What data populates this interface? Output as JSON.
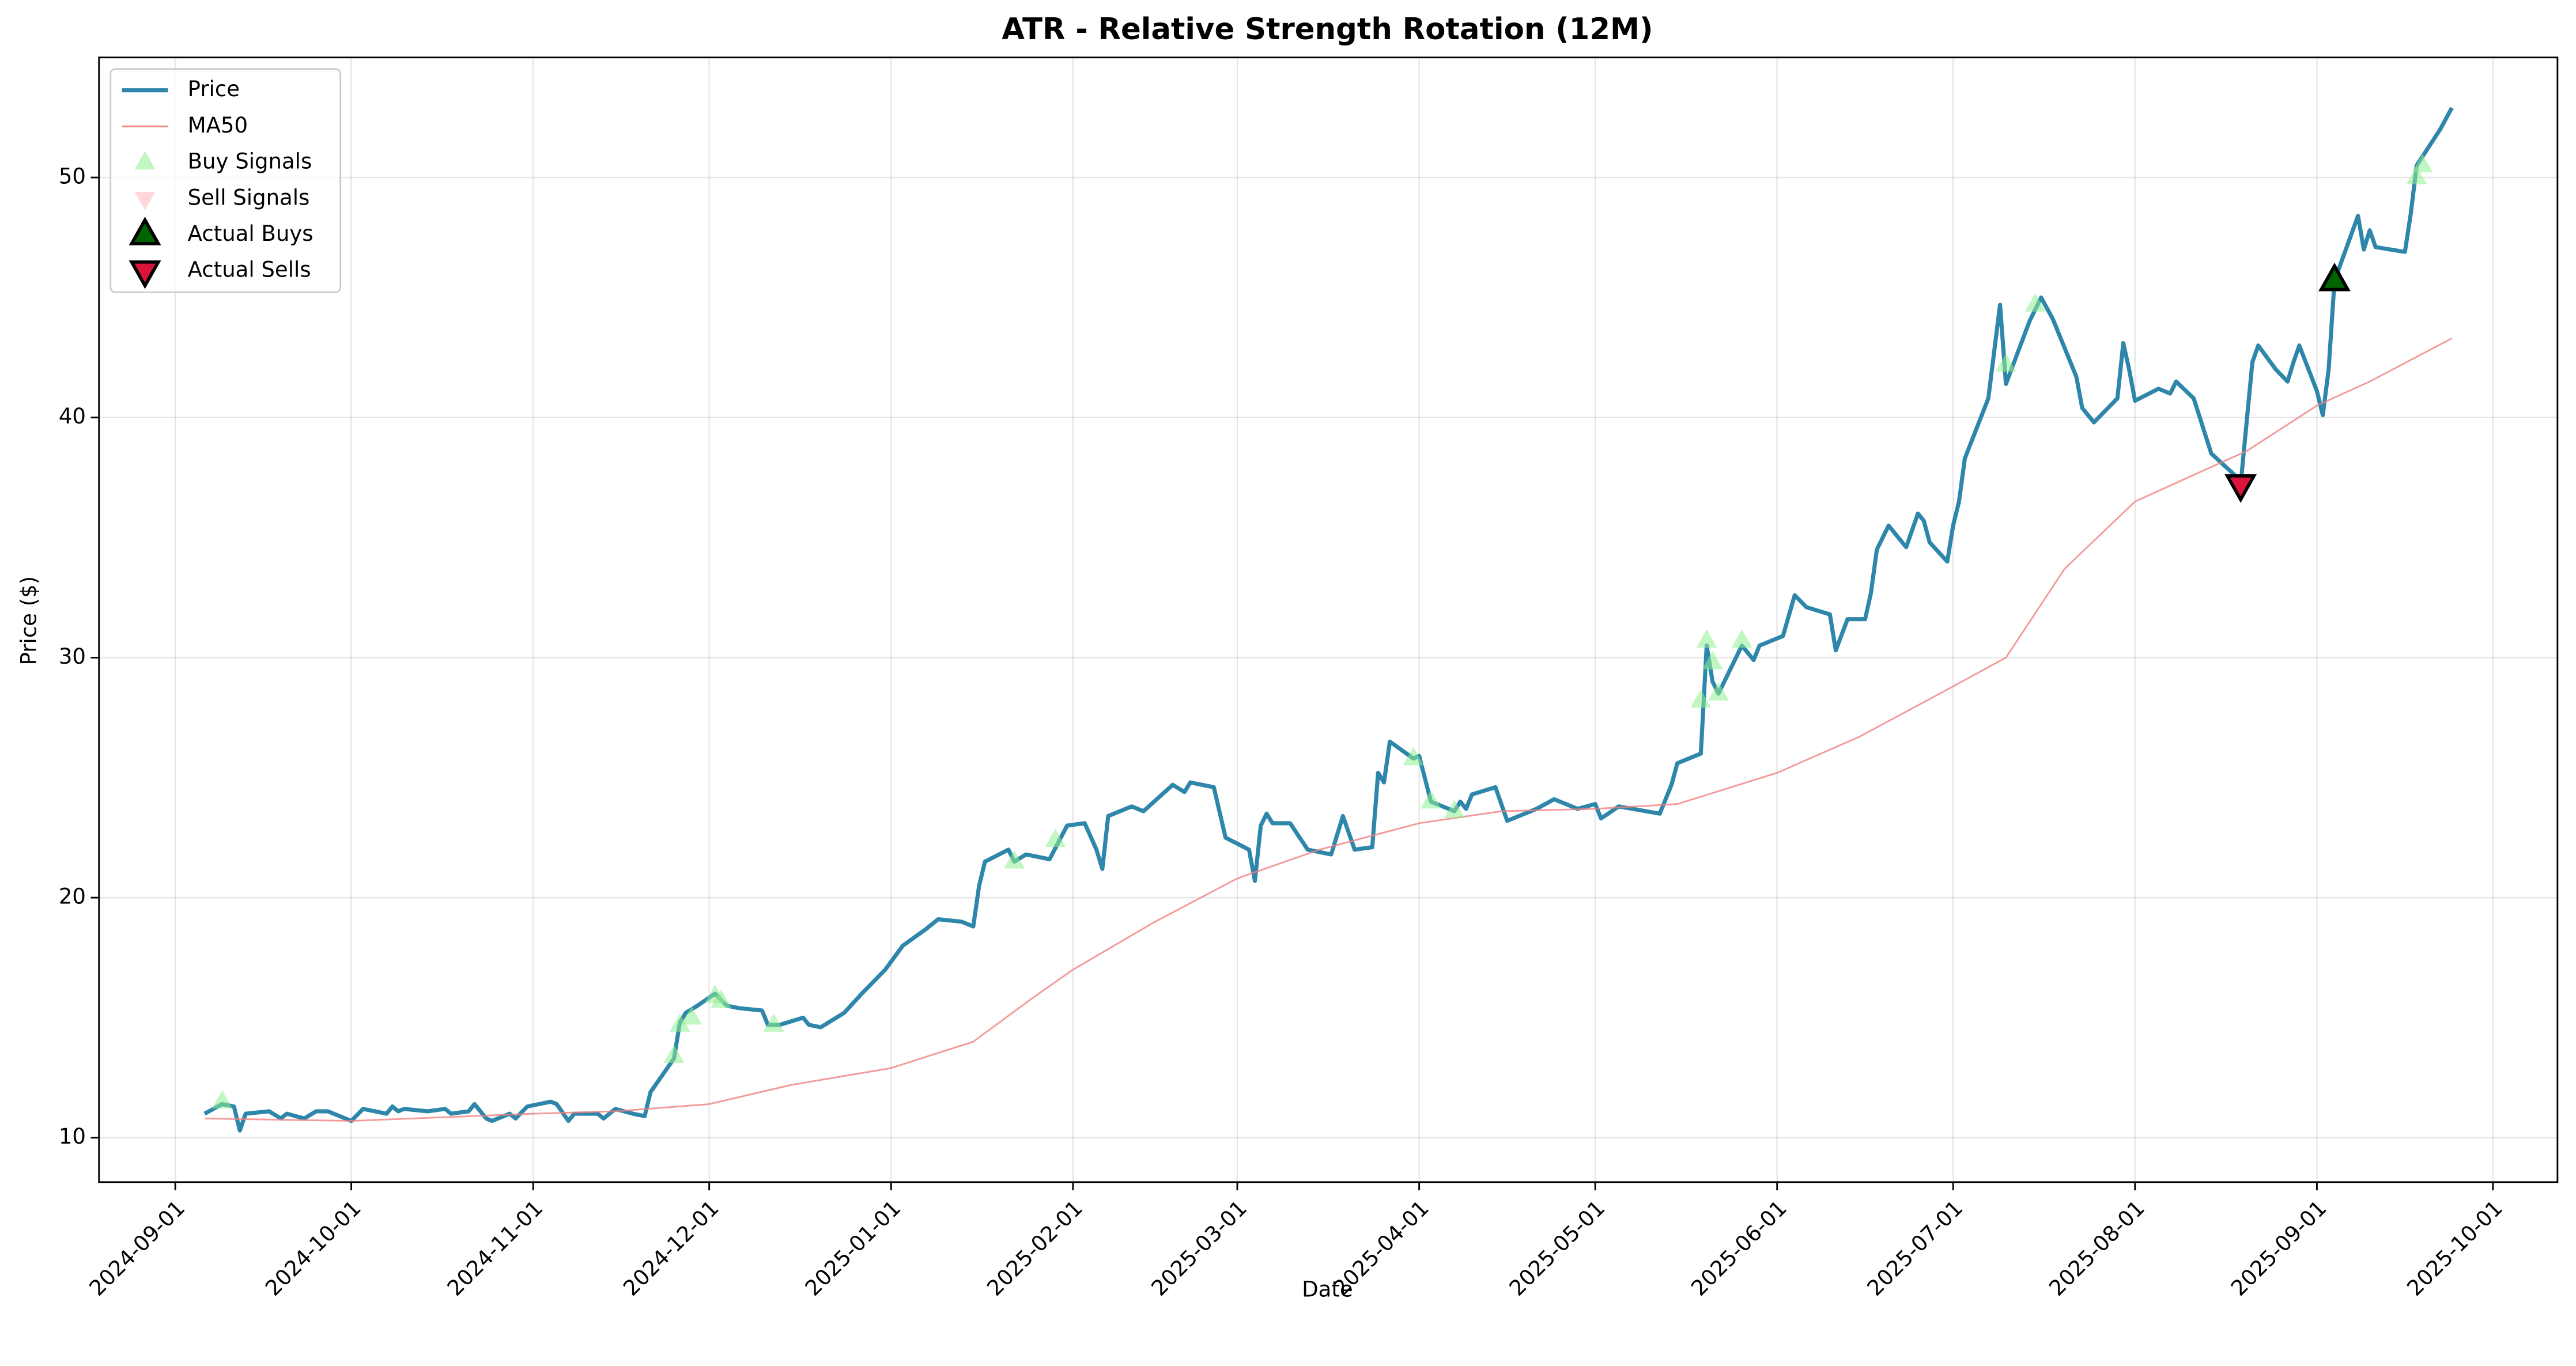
{
  "chart_data": {
    "type": "line",
    "title": "ATR - Relative Strength Rotation (12M)",
    "xlabel": "Date",
    "ylabel": "Price ($)",
    "xlim": [
      "2024-08-19",
      "2025-10-12"
    ],
    "xticks": [
      "2024-09-01",
      "2024-10-01",
      "2024-11-01",
      "2024-12-01",
      "2025-01-01",
      "2025-02-01",
      "2025-03-01",
      "2025-04-01",
      "2025-05-01",
      "2025-06-01",
      "2025-07-01",
      "2025-08-01",
      "2025-09-01",
      "2025-10-01"
    ],
    "ylim": [
      8.15,
      55
    ],
    "yticks": [
      10,
      20,
      30,
      40,
      50
    ],
    "grid": true,
    "legend": "upper left",
    "series": [
      {
        "name": "Price",
        "kind": "line",
        "color": "#2e86ab",
        "x": [
          "2024-09-06",
          "2024-09-09",
          "2024-09-11",
          "2024-09-12",
          "2024-09-13",
          "2024-09-17",
          "2024-09-19",
          "2024-09-20",
          "2024-09-23",
          "2024-09-25",
          "2024-09-27",
          "2024-10-01",
          "2024-10-03",
          "2024-10-07",
          "2024-10-08",
          "2024-10-09",
          "2024-10-10",
          "2024-10-14",
          "2024-10-17",
          "2024-10-18",
          "2024-10-21",
          "2024-10-22",
          "2024-10-24",
          "2024-10-25",
          "2024-10-28",
          "2024-10-29",
          "2024-10-31",
          "2024-11-04",
          "2024-11-05",
          "2024-11-07",
          "2024-11-08",
          "2024-11-12",
          "2024-11-13",
          "2024-11-15",
          "2024-11-18",
          "2024-11-20",
          "2024-11-21",
          "2024-11-25",
          "2024-11-26",
          "2024-11-27",
          "2024-11-29",
          "2024-12-02",
          "2024-12-04",
          "2024-12-06",
          "2024-12-10",
          "2024-12-11",
          "2024-12-13",
          "2024-12-17",
          "2024-12-18",
          "2024-12-20",
          "2024-12-24",
          "2024-12-27",
          "2024-12-31",
          "2025-01-03",
          "2025-01-07",
          "2025-01-09",
          "2025-01-13",
          "2025-01-15",
          "2025-01-16",
          "2025-01-17",
          "2025-01-21",
          "2025-01-22",
          "2025-01-24",
          "2025-01-28",
          "2025-01-31",
          "2025-02-03",
          "2025-02-05",
          "2025-02-06",
          "2025-02-07",
          "2025-02-11",
          "2025-02-13",
          "2025-02-18",
          "2025-02-20",
          "2025-02-21",
          "2025-02-25",
          "2025-02-27",
          "2025-03-03",
          "2025-03-04",
          "2025-03-05",
          "2025-03-06",
          "2025-03-07",
          "2025-03-10",
          "2025-03-13",
          "2025-03-17",
          "2025-03-19",
          "2025-03-21",
          "2025-03-24",
          "2025-03-25",
          "2025-03-26",
          "2025-03-27",
          "2025-03-31",
          "2025-04-01",
          "2025-04-03",
          "2025-04-07",
          "2025-04-08",
          "2025-04-09",
          "2025-04-10",
          "2025-04-14",
          "2025-04-16",
          "2025-04-21",
          "2025-04-24",
          "2025-04-28",
          "2025-05-01",
          "2025-05-02",
          "2025-05-05",
          "2025-05-12",
          "2025-05-14",
          "2025-05-15",
          "2025-05-19",
          "2025-05-20",
          "2025-05-21",
          "2025-05-22",
          "2025-05-26",
          "2025-05-28",
          "2025-05-29",
          "2025-06-02",
          "2025-06-04",
          "2025-06-06",
          "2025-06-10",
          "2025-06-11",
          "2025-06-13",
          "2025-06-16",
          "2025-06-17",
          "2025-06-18",
          "2025-06-20",
          "2025-06-23",
          "2025-06-25",
          "2025-06-26",
          "2025-06-27",
          "2025-06-30",
          "2025-07-01",
          "2025-07-02",
          "2025-07-03",
          "2025-07-07",
          "2025-07-09",
          "2025-07-10",
          "2025-07-14",
          "2025-07-16",
          "2025-07-18",
          "2025-07-22",
          "2025-07-23",
          "2025-07-25",
          "2025-07-29",
          "2025-07-30",
          "2025-07-31",
          "2025-08-01",
          "2025-08-05",
          "2025-08-07",
          "2025-08-08",
          "2025-08-11",
          "2025-08-14",
          "2025-08-18",
          "2025-08-19",
          "2025-08-21",
          "2025-08-22",
          "2025-08-25",
          "2025-08-27",
          "2025-08-28",
          "2025-08-29",
          "2025-09-01",
          "2025-09-02",
          "2025-09-03",
          "2025-09-04",
          "2025-09-08",
          "2025-09-09",
          "2025-09-10",
          "2025-09-11",
          "2025-09-16",
          "2025-09-17",
          "2025-09-18",
          "2025-09-22",
          "2025-09-24"
        ],
        "values": [
          11.0,
          11.4,
          11.3,
          10.3,
          11.0,
          11.1,
          10.8,
          11.0,
          10.8,
          11.1,
          11.1,
          10.7,
          11.2,
          11.0,
          11.3,
          11.1,
          11.2,
          11.1,
          11.2,
          11.0,
          11.1,
          11.4,
          10.8,
          10.7,
          11.0,
          10.8,
          11.3,
          11.5,
          11.4,
          10.7,
          11.0,
          11.0,
          10.8,
          11.2,
          11.0,
          10.9,
          11.9,
          13.3,
          14.8,
          15.2,
          15.5,
          16.0,
          15.5,
          15.4,
          15.3,
          14.7,
          14.7,
          15.0,
          14.7,
          14.6,
          15.2,
          16.0,
          17.0,
          18.0,
          18.7,
          19.1,
          19.0,
          18.8,
          20.5,
          21.5,
          22.0,
          21.5,
          21.8,
          21.6,
          23.0,
          23.1,
          22.0,
          21.2,
          23.4,
          23.8,
          23.6,
          24.7,
          24.4,
          24.8,
          24.6,
          22.5,
          22.0,
          20.7,
          23.0,
          23.5,
          23.1,
          23.1,
          22.0,
          21.8,
          23.4,
          22.0,
          22.1,
          25.2,
          24.8,
          26.5,
          25.8,
          25.9,
          24.0,
          23.6,
          24.0,
          23.7,
          24.3,
          24.6,
          23.2,
          23.7,
          24.1,
          23.7,
          23.9,
          23.3,
          23.8,
          23.5,
          24.7,
          25.6,
          26.0,
          30.5,
          29.0,
          28.5,
          30.5,
          29.9,
          30.5,
          30.9,
          32.6,
          32.1,
          31.8,
          30.3,
          31.6,
          31.6,
          32.7,
          34.5,
          35.5,
          34.6,
          36.0,
          35.7,
          34.8,
          34.0,
          35.5,
          36.5,
          38.3,
          40.8,
          44.7,
          41.4,
          44.0,
          45.0,
          44.1,
          41.7,
          40.4,
          39.8,
          40.8,
          43.1,
          42.0,
          40.7,
          41.2,
          41.0,
          41.5,
          40.8,
          38.5,
          37.6,
          37.2,
          42.3,
          43.0,
          42.0,
          41.5,
          42.3,
          43.0,
          41.1,
          40.1,
          42.0,
          45.7,
          48.4,
          47.0,
          47.8,
          47.1,
          46.9,
          48.5,
          50.5,
          52.0,
          52.9
        ]
      },
      {
        "name": "MA50",
        "kind": "line",
        "color": "#f08080",
        "x": [
          "2024-09-06",
          "2024-10-01",
          "2024-11-01",
          "2024-11-15",
          "2024-12-01",
          "2024-12-15",
          "2025-01-01",
          "2025-01-15",
          "2025-01-25",
          "2025-02-01",
          "2025-02-15",
          "2025-03-01",
          "2025-03-15",
          "2025-04-01",
          "2025-04-15",
          "2025-05-01",
          "2025-05-15",
          "2025-06-01",
          "2025-06-15",
          "2025-07-01",
          "2025-07-10",
          "2025-07-20",
          "2025-08-01",
          "2025-08-10",
          "2025-08-20",
          "2025-09-01",
          "2025-09-10",
          "2025-09-24"
        ],
        "values": [
          10.8,
          10.7,
          11.0,
          11.1,
          11.4,
          12.2,
          12.9,
          14.0,
          15.8,
          17.0,
          19.0,
          20.8,
          22.0,
          23.1,
          23.6,
          23.7,
          23.9,
          25.2,
          26.7,
          28.8,
          30.0,
          33.7,
          36.5,
          37.5,
          38.6,
          40.5,
          41.5,
          43.3
        ]
      },
      {
        "name": "Buy Signals",
        "kind": "scatter",
        "marker": "up",
        "color": "#90ee90",
        "x": [
          "2024-09-09",
          "2024-11-25",
          "2024-11-26",
          "2024-11-28",
          "2024-12-02",
          "2024-12-03",
          "2024-12-12",
          "2025-01-22",
          "2025-01-29",
          "2025-03-31",
          "2025-04-03",
          "2025-04-07",
          "2025-05-19",
          "2025-05-20",
          "2025-05-21",
          "2025-05-22",
          "2025-05-26",
          "2025-07-10",
          "2025-07-15",
          "2025-09-18",
          "2025-09-19"
        ],
        "values": [
          11.5,
          13.4,
          14.7,
          15.0,
          15.9,
          15.7,
          14.7,
          21.5,
          22.4,
          25.8,
          24.0,
          23.6,
          28.2,
          30.7,
          29.8,
          28.5,
          30.7,
          42.2,
          44.7,
          50.0,
          50.5
        ]
      },
      {
        "name": "Sell Signals",
        "kind": "scatter",
        "marker": "down",
        "color": "#ffb6c1",
        "x": [],
        "values": []
      },
      {
        "name": "Actual Buys",
        "kind": "scatter",
        "marker": "up",
        "color": "#006400",
        "x": [
          "2025-09-04"
        ],
        "values": [
          45.7
        ]
      },
      {
        "name": "Actual Sells",
        "kind": "scatter",
        "marker": "down",
        "color": "#dc143c",
        "x": [
          "2025-08-19"
        ],
        "values": [
          37.2
        ]
      }
    ]
  }
}
